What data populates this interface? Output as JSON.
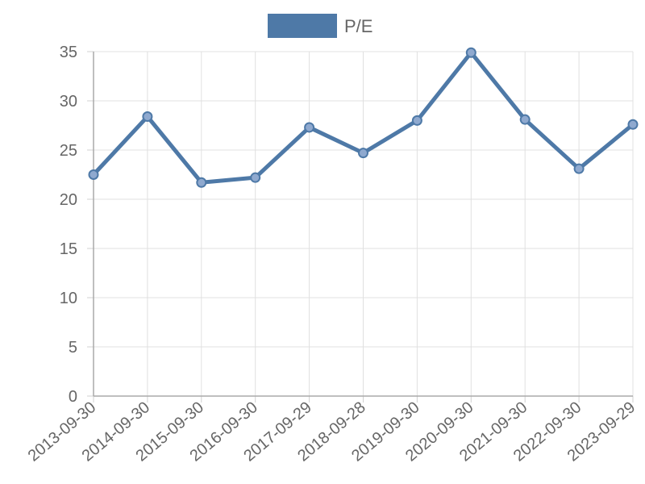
{
  "chart_data": {
    "type": "line",
    "title": "",
    "xlabel": "",
    "ylabel": "",
    "categories": [
      "2013-09-30",
      "2014-09-30",
      "2015-09-30",
      "2016-09-30",
      "2017-09-29",
      "2018-09-28",
      "2019-09-30",
      "2020-09-30",
      "2021-09-30",
      "2022-09-30",
      "2023-09-29"
    ],
    "series": [
      {
        "name": "P/E",
        "values": [
          22.5,
          28.4,
          21.7,
          22.2,
          27.3,
          24.7,
          28.0,
          34.9,
          28.1,
          23.1,
          27.6
        ],
        "color": "#4e79a7"
      }
    ],
    "ylim": [
      0,
      35
    ],
    "yticks": [
      0,
      5,
      10,
      15,
      20,
      25,
      30,
      35
    ],
    "grid": true,
    "legend_position": "top-center"
  }
}
